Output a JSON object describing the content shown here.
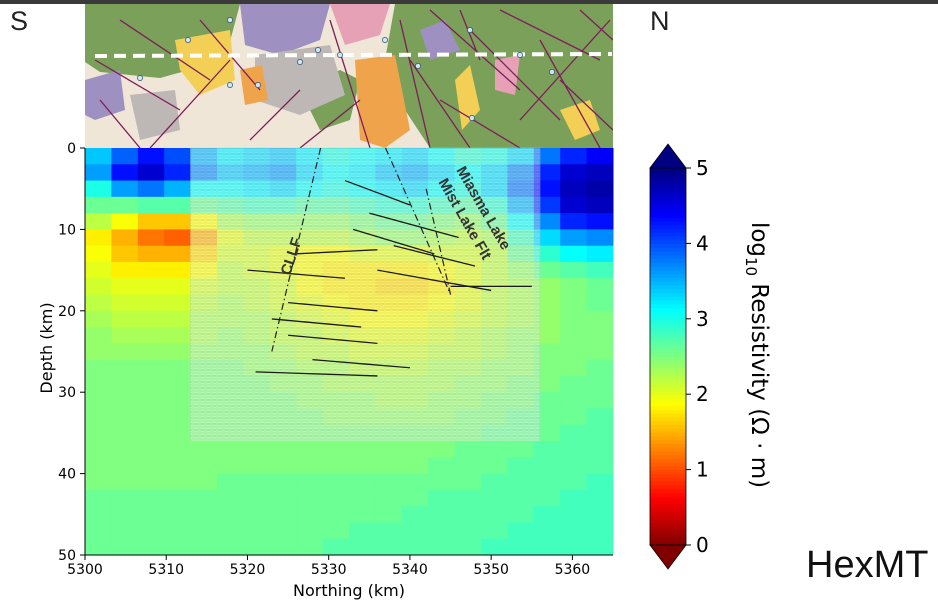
{
  "labels": {
    "south": "S",
    "north": "N",
    "brand": "HexMT",
    "fault_west": "CLLF",
    "fault_east_1": "Miasma Lake",
    "fault_east_2": "Mist Lake Flt"
  },
  "chart_data": {
    "type": "heatmap",
    "title": "",
    "xlabel": "Northing (km)",
    "ylabel": "Depth (km)",
    "xlim": [
      5300,
      5365
    ],
    "ylim": [
      50,
      0
    ],
    "xticks": [
      5300,
      5310,
      5320,
      5330,
      5340,
      5350,
      5360
    ],
    "yticks": [
      0,
      10,
      20,
      30,
      40,
      50
    ],
    "colorbar": {
      "label": "log10 Resistivity (Ω · m)",
      "label_main": "log",
      "label_sub": "10",
      "label_rest": " Resistivity (Ω · m)",
      "range": [
        0,
        5
      ],
      "ticks": [
        0,
        1,
        2,
        3,
        4,
        5
      ],
      "colormap": "jet_r",
      "extend": "both"
    },
    "cell_size_km": {
      "x": 3.25,
      "z": 2.0
    },
    "resistivity_log10_rows": [
      [
        3.4,
        3.9,
        4.3,
        4.0,
        3.5,
        3.2,
        3.3,
        3.4,
        3.2,
        3.0,
        3.1,
        3.2,
        3.3,
        3.1,
        2.9,
        3.0,
        3.3,
        3.8,
        4.2,
        4.4
      ],
      [
        3.6,
        4.3,
        4.6,
        4.2,
        3.7,
        3.4,
        3.5,
        3.6,
        3.3,
        3.1,
        3.2,
        3.4,
        3.5,
        3.3,
        3.1,
        3.3,
        3.7,
        4.2,
        4.6,
        4.7
      ],
      [
        3.0,
        3.6,
        3.8,
        3.5,
        3.1,
        3.1,
        3.2,
        3.3,
        3.1,
        3.0,
        3.1,
        3.2,
        3.3,
        3.1,
        3.0,
        3.3,
        3.8,
        4.3,
        4.7,
        4.8
      ],
      [
        2.6,
        2.6,
        2.7,
        2.7,
        2.6,
        2.7,
        2.8,
        2.8,
        2.7,
        2.7,
        2.8,
        2.9,
        2.9,
        2.8,
        2.7,
        2.9,
        3.5,
        4.1,
        4.6,
        4.7
      ],
      [
        2.2,
        1.9,
        1.6,
        1.6,
        1.9,
        2.3,
        2.4,
        2.4,
        2.4,
        2.4,
        2.5,
        2.6,
        2.6,
        2.5,
        2.4,
        2.6,
        3.1,
        3.7,
        4.2,
        4.3
      ],
      [
        1.8,
        1.5,
        1.2,
        1.1,
        1.5,
        2.0,
        2.2,
        2.2,
        2.2,
        2.2,
        2.3,
        2.4,
        2.4,
        2.3,
        2.2,
        2.3,
        2.8,
        3.3,
        3.6,
        3.7
      ],
      [
        1.9,
        1.6,
        1.5,
        1.5,
        1.7,
        2.1,
        2.1,
        2.0,
        1.9,
        1.9,
        2.0,
        2.0,
        2.0,
        2.1,
        2.1,
        2.2,
        2.6,
        2.9,
        3.1,
        3.2
      ],
      [
        2.0,
        1.8,
        1.8,
        1.8,
        1.9,
        2.2,
        2.1,
        2.0,
        1.9,
        1.8,
        1.8,
        1.8,
        1.8,
        1.9,
        2.0,
        2.2,
        2.4,
        2.6,
        2.7,
        2.8
      ],
      [
        2.1,
        2.0,
        2.0,
        2.0,
        2.1,
        2.2,
        2.2,
        2.1,
        1.9,
        1.8,
        1.8,
        1.7,
        1.7,
        1.8,
        2.0,
        2.2,
        2.3,
        2.4,
        2.5,
        2.6
      ],
      [
        2.2,
        2.1,
        2.1,
        2.1,
        2.2,
        2.3,
        2.2,
        2.1,
        2.0,
        1.9,
        1.8,
        1.8,
        1.8,
        1.9,
        2.0,
        2.2,
        2.3,
        2.4,
        2.5,
        2.6
      ],
      [
        2.3,
        2.2,
        2.2,
        2.2,
        2.3,
        2.3,
        2.3,
        2.2,
        2.1,
        2.0,
        1.9,
        1.9,
        1.9,
        2.0,
        2.1,
        2.2,
        2.3,
        2.4,
        2.5,
        2.5
      ],
      [
        2.4,
        2.3,
        2.3,
        2.3,
        2.3,
        2.4,
        2.3,
        2.2,
        2.2,
        2.1,
        2.0,
        2.0,
        2.0,
        2.1,
        2.2,
        2.3,
        2.4,
        2.4,
        2.5,
        2.5
      ],
      [
        2.4,
        2.4,
        2.4,
        2.4,
        2.4,
        2.4,
        2.4,
        2.3,
        2.2,
        2.2,
        2.1,
        2.1,
        2.1,
        2.2,
        2.2,
        2.3,
        2.4,
        2.5,
        2.5,
        2.5
      ],
      [
        2.5,
        2.5,
        2.5,
        2.5,
        2.5,
        2.5,
        2.4,
        2.4,
        2.3,
        2.3,
        2.2,
        2.2,
        2.2,
        2.3,
        2.3,
        2.4,
        2.4,
        2.5,
        2.5,
        2.6
      ],
      [
        2.5,
        2.5,
        2.5,
        2.5,
        2.5,
        2.5,
        2.5,
        2.4,
        2.4,
        2.3,
        2.3,
        2.3,
        2.3,
        2.3,
        2.4,
        2.4,
        2.5,
        2.5,
        2.6,
        2.6
      ],
      [
        2.5,
        2.5,
        2.5,
        2.5,
        2.5,
        2.5,
        2.5,
        2.5,
        2.4,
        2.4,
        2.4,
        2.3,
        2.3,
        2.4,
        2.4,
        2.5,
        2.5,
        2.6,
        2.6,
        2.6
      ],
      [
        2.5,
        2.5,
        2.5,
        2.5,
        2.5,
        2.5,
        2.5,
        2.5,
        2.5,
        2.4,
        2.4,
        2.4,
        2.4,
        2.4,
        2.5,
        2.5,
        2.6,
        2.6,
        2.6,
        2.7
      ],
      [
        2.5,
        2.5,
        2.5,
        2.5,
        2.5,
        2.5,
        2.5,
        2.5,
        2.5,
        2.5,
        2.5,
        2.5,
        2.5,
        2.5,
        2.5,
        2.6,
        2.6,
        2.6,
        2.7,
        2.7
      ],
      [
        2.5,
        2.5,
        2.5,
        2.5,
        2.5,
        2.5,
        2.5,
        2.5,
        2.5,
        2.5,
        2.5,
        2.5,
        2.5,
        2.5,
        2.6,
        2.6,
        2.6,
        2.7,
        2.7,
        2.7
      ],
      [
        2.5,
        2.5,
        2.5,
        2.5,
        2.5,
        2.5,
        2.5,
        2.5,
        2.5,
        2.5,
        2.5,
        2.5,
        2.5,
        2.6,
        2.6,
        2.6,
        2.7,
        2.7,
        2.7,
        2.7
      ],
      [
        2.5,
        2.5,
        2.5,
        2.5,
        2.5,
        2.6,
        2.6,
        2.6,
        2.6,
        2.6,
        2.6,
        2.6,
        2.6,
        2.6,
        2.6,
        2.7,
        2.7,
        2.7,
        2.7,
        2.8
      ],
      [
        2.6,
        2.6,
        2.6,
        2.6,
        2.6,
        2.6,
        2.6,
        2.6,
        2.6,
        2.6,
        2.6,
        2.6,
        2.6,
        2.7,
        2.7,
        2.7,
        2.7,
        2.7,
        2.8,
        2.8
      ],
      [
        2.6,
        2.6,
        2.6,
        2.6,
        2.6,
        2.6,
        2.6,
        2.6,
        2.6,
        2.6,
        2.6,
        2.6,
        2.7,
        2.7,
        2.7,
        2.7,
        2.7,
        2.8,
        2.8,
        2.8
      ],
      [
        2.6,
        2.6,
        2.6,
        2.6,
        2.6,
        2.6,
        2.6,
        2.6,
        2.6,
        2.6,
        2.7,
        2.7,
        2.7,
        2.7,
        2.7,
        2.7,
        2.8,
        2.8,
        2.8,
        2.8
      ],
      [
        2.6,
        2.6,
        2.6,
        2.6,
        2.6,
        2.6,
        2.6,
        2.6,
        2.6,
        2.7,
        2.7,
        2.7,
        2.7,
        2.7,
        2.7,
        2.8,
        2.8,
        2.8,
        2.8,
        2.8
      ]
    ],
    "seismic_overlay_extent": {
      "x": [
        5313,
        5356
      ],
      "depth": [
        0,
        36
      ]
    },
    "faults": [
      {
        "name": "CLLF",
        "path": [
          [
            5329,
            0
          ],
          [
            5323,
            25
          ]
        ]
      },
      {
        "name": "Mist Lake Flt",
        "path": [
          [
            5337,
            0
          ],
          [
            5345,
            18
          ]
        ]
      },
      {
        "name": "Miasma Lake",
        "path": [
          [
            5342,
            5
          ],
          [
            5345,
            18
          ]
        ]
      }
    ],
    "reflectors": [
      [
        [
          5320,
          15
        ],
        [
          5332,
          16
        ]
      ],
      [
        [
          5325,
          19
        ],
        [
          5336,
          20
        ]
      ],
      [
        [
          5323,
          21
        ],
        [
          5334,
          22
        ]
      ],
      [
        [
          5325,
          23
        ],
        [
          5336,
          24
        ]
      ],
      [
        [
          5321,
          27.5
        ],
        [
          5336,
          28
        ]
      ],
      [
        [
          5328,
          26
        ],
        [
          5340,
          27
        ]
      ],
      [
        [
          5332,
          4
        ],
        [
          5340,
          7
        ]
      ],
      [
        [
          5335,
          8
        ],
        [
          5346,
          11
        ]
      ],
      [
        [
          5338,
          12
        ],
        [
          5348,
          14.5
        ]
      ],
      [
        [
          5336,
          15
        ],
        [
          5350,
          17.5
        ]
      ],
      [
        [
          5345,
          17
        ],
        [
          5355,
          17
        ]
      ],
      [
        [
          5333,
          10
        ],
        [
          5343,
          13
        ]
      ],
      [
        [
          5326,
          13
        ],
        [
          5336,
          12.5
        ]
      ]
    ]
  },
  "geology_strip": {
    "profile_line_style": "dashed-white",
    "colors": {
      "ground": "#efe6d8",
      "green": "#7aa05a",
      "yellow": "#f3cf55",
      "purple": "#9e90c0",
      "grey": "#bdb7b5",
      "pink": "#e7a1b6",
      "orange": "#efa44b",
      "faults": "#7d1e5a"
    }
  }
}
